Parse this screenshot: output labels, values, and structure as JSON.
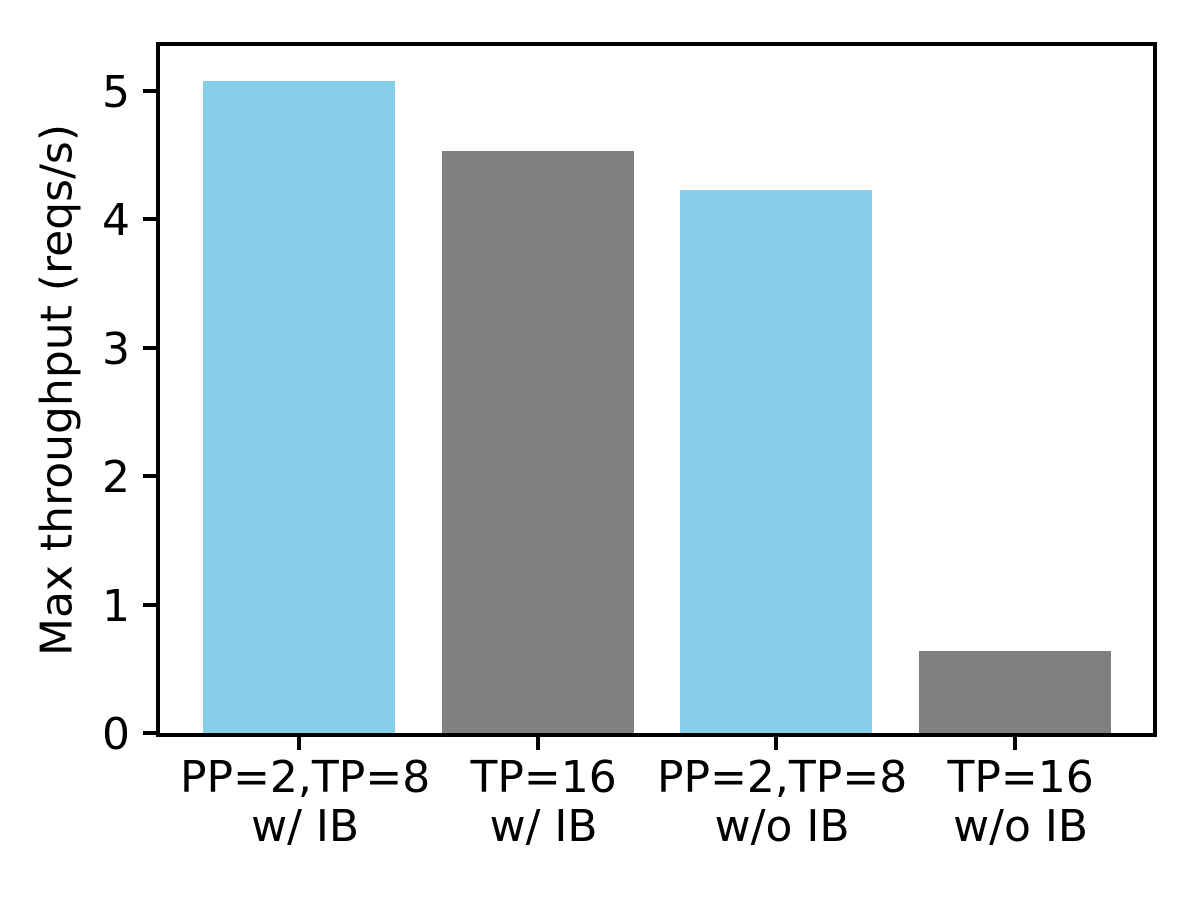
{
  "chart_data": {
    "type": "bar",
    "title": "",
    "xlabel": "",
    "ylabel": "Max throughput (reqs/s)",
    "categories": [
      "PP=2,TP=8\nw/ IB",
      "TP=16\nw/ IB",
      "PP=2,TP=8\nw/o IB",
      "TP=16\nw/o IB"
    ],
    "values": [
      5.08,
      4.53,
      4.23,
      0.64
    ],
    "bar_colors": [
      "#87CEEB",
      "#808080",
      "#87CEEB",
      "#808080"
    ],
    "ylim": [
      0,
      5.35
    ],
    "yticks": [
      0,
      1,
      2,
      3,
      4,
      5
    ],
    "ytick_labels": [
      "0",
      "1",
      "2",
      "3",
      "4",
      "5"
    ],
    "grid": false,
    "legend": null,
    "axis_color": "#000000",
    "background_color": "#ffffff"
  }
}
